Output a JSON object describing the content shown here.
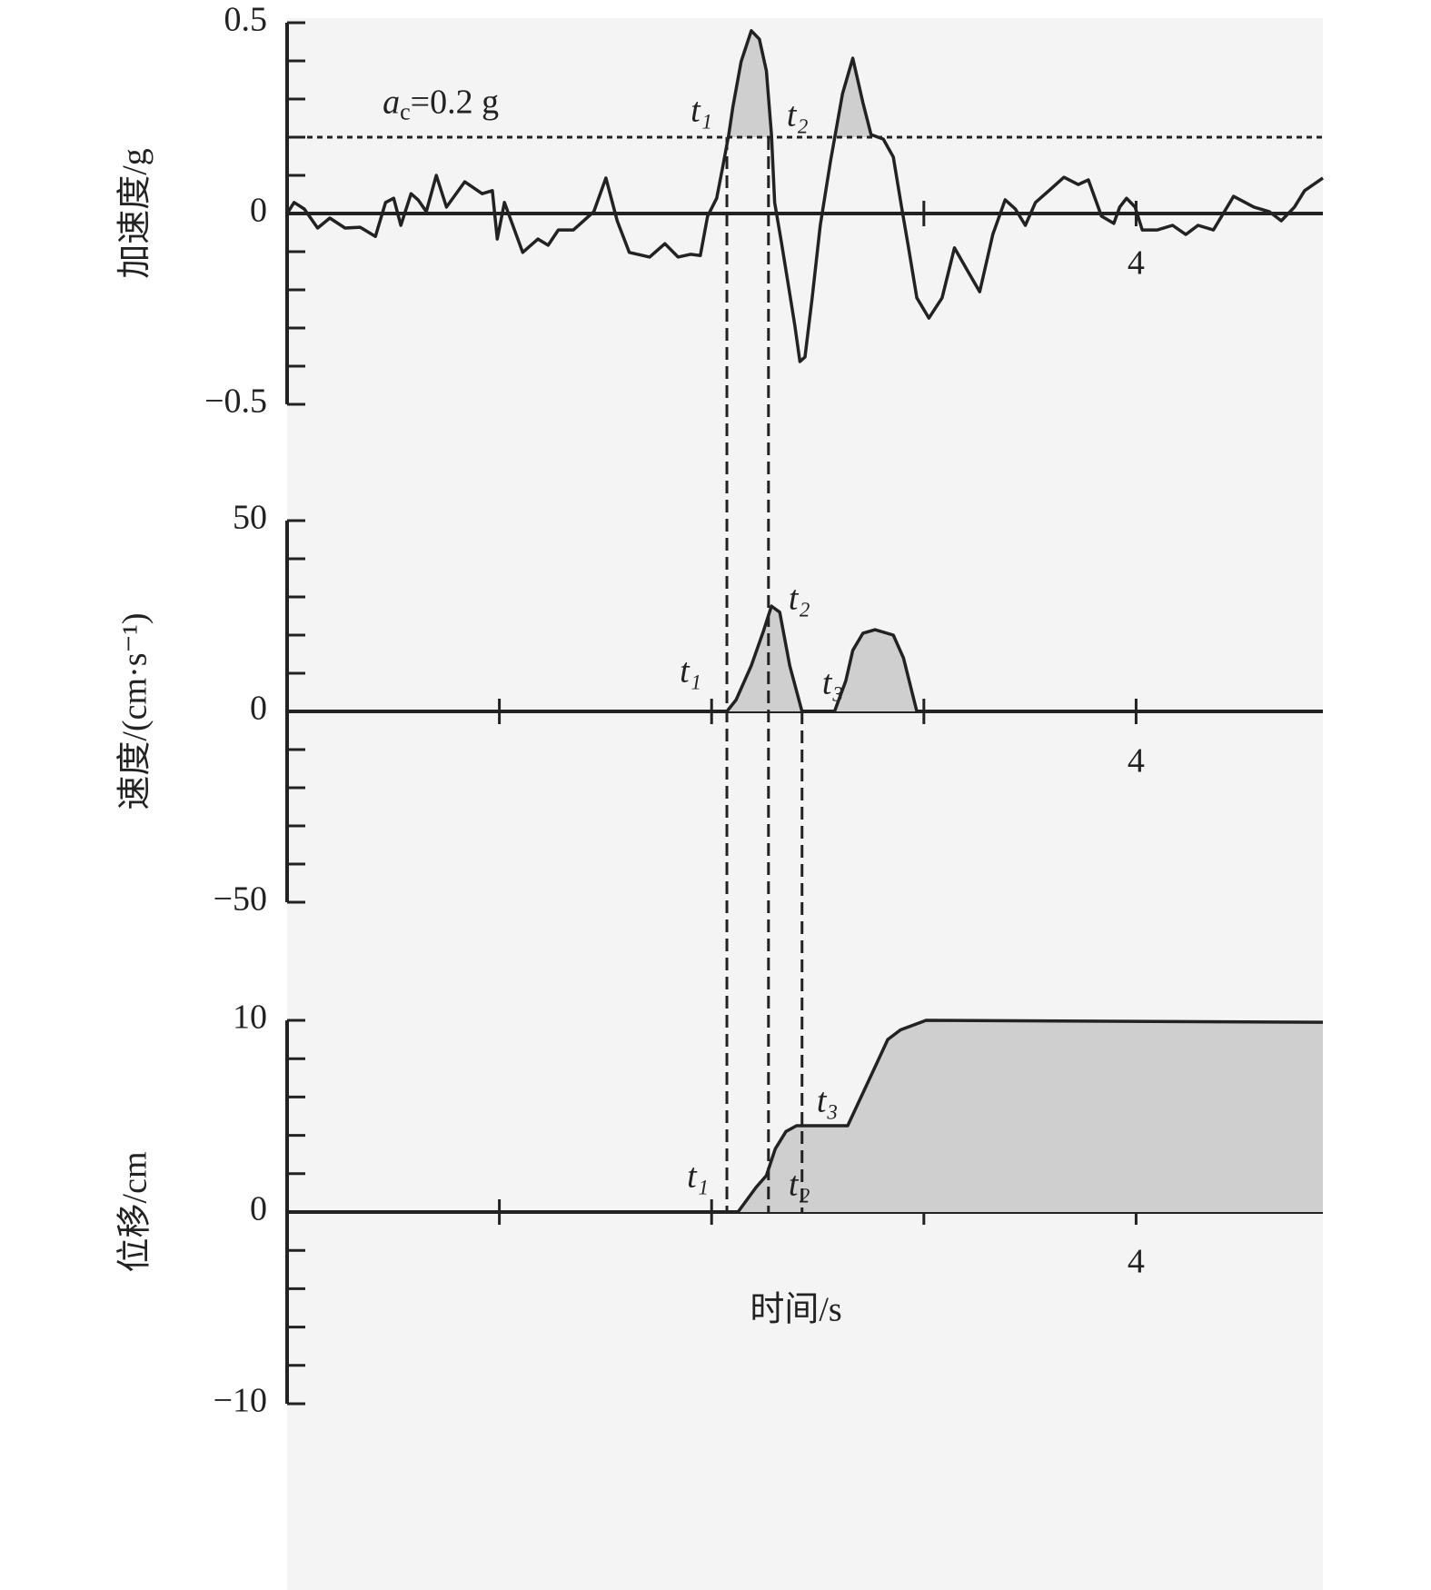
{
  "chart_data": [
    {
      "type": "line",
      "ylabel": "加速度/g",
      "xlim": [
        0,
        4.88
      ],
      "ylim": [
        -0.5,
        0.5
      ],
      "xticks": [
        {
          "value": 3,
          "label": null
        },
        4
      ],
      "yticks": [
        {
          "value": -0.5,
          "label": "−0.5"
        },
        {
          "value": -0.4,
          "label": null
        },
        {
          "value": -0.3,
          "label": null
        },
        {
          "value": -0.2,
          "label": null
        },
        {
          "value": -0.1,
          "label": null
        },
        0,
        {
          "value": 0.1,
          "label": null
        },
        {
          "value": 0.2,
          "label": null
        },
        {
          "value": 0.3,
          "label": null
        },
        {
          "value": 0.4,
          "label": null
        },
        0.5
      ],
      "threshold": 0.2,
      "threshold_label": {
        "var": "a",
        "sub": "c",
        "rest": "=0.2 g"
      },
      "events": [
        {
          "label": "t₁",
          "x": 2.072
        },
        {
          "label": "t₂",
          "x": 2.268
        }
      ],
      "x": [
        0,
        0.033,
        0.081,
        0.144,
        0.201,
        0.273,
        0.344,
        0.416,
        0.464,
        0.502,
        0.536,
        0.584,
        0.617,
        0.656,
        0.703,
        0.751,
        0.837,
        0.919,
        0.967,
        0.99,
        1.024,
        1.11,
        1.182,
        1.23,
        1.278,
        1.349,
        1.445,
        1.502,
        1.555,
        1.612,
        1.708,
        1.78,
        1.842,
        1.9,
        1.947,
        1.981,
        2.024,
        2.053,
        2.081,
        2.1,
        2.139,
        2.187,
        2.225,
        2.258,
        2.282,
        2.297,
        2.33,
        2.368,
        2.392,
        2.416,
        2.44,
        2.474,
        2.512,
        2.56,
        2.617,
        2.665,
        2.713,
        2.751,
        2.809,
        2.856,
        2.895,
        2.928,
        2.967,
        3.024,
        3.086,
        3.144,
        3.206,
        3.263,
        3.325,
        3.383,
        3.431,
        3.478,
        3.526,
        3.598,
        3.66,
        3.727,
        3.775,
        3.837,
        3.895,
        3.923,
        3.955,
        3.995,
        4.029,
        4.1,
        4.172,
        4.234,
        4.292,
        4.364,
        4.459,
        4.555,
        4.627,
        4.684,
        4.746,
        4.794,
        4.88
      ],
      "values": [
        0,
        0.029,
        0.012,
        -0.038,
        -0.012,
        -0.038,
        -0.036,
        -0.06,
        0.029,
        0.04,
        -0.031,
        0.052,
        0.036,
        0.005,
        0.1,
        0.017,
        0.083,
        0.052,
        0.06,
        -0.067,
        0.029,
        -0.102,
        -0.067,
        -0.083,
        -0.043,
        -0.043,
        0.005,
        0.093,
        -0.019,
        -0.102,
        -0.114,
        -0.079,
        -0.114,
        -0.107,
        -0.11,
        -0.007,
        0.04,
        0.124,
        0.207,
        0.279,
        0.398,
        0.479,
        0.457,
        0.374,
        0.207,
        0.029,
        -0.079,
        -0.21,
        -0.293,
        -0.388,
        -0.376,
        -0.221,
        -0.031,
        0.136,
        0.314,
        0.407,
        0.29,
        0.207,
        0.195,
        0.148,
        0.017,
        -0.09,
        -0.221,
        -0.274,
        -0.221,
        -0.09,
        -0.15,
        -0.205,
        -0.055,
        0.036,
        0.012,
        -0.031,
        0.029,
        0.064,
        0.095,
        0.076,
        0.088,
        -0.007,
        -0.026,
        0.017,
        0.04,
        0.017,
        -0.043,
        -0.043,
        -0.031,
        -0.055,
        -0.031,
        -0.043,
        0.045,
        0.017,
        0.005,
        -0.019,
        0.017,
        0.06,
        0.093
      ]
    },
    {
      "type": "area",
      "ylabel": "速度/(cm·s⁻¹)",
      "xlim": [
        0,
        4.88
      ],
      "ylim": [
        -50,
        50
      ],
      "xticks": [
        {
          "value": 1,
          "label": null
        },
        {
          "value": 2,
          "label": null
        },
        {
          "value": 3,
          "label": null
        },
        4
      ],
      "yticks": [
        {
          "value": -50,
          "label": "−50"
        },
        {
          "value": -40,
          "label": null
        },
        {
          "value": -30,
          "label": null
        },
        {
          "value": -20,
          "label": null
        },
        {
          "value": -10,
          "label": null
        },
        0,
        {
          "value": 10,
          "label": null
        },
        {
          "value": 20,
          "label": null
        },
        {
          "value": 30,
          "label": null
        },
        {
          "value": 40,
          "label": null
        },
        50
      ],
      "events": [
        {
          "label": "t₁",
          "x": 2.072
        },
        {
          "label": "t₂",
          "x": 2.268
        },
        {
          "label": "t₃",
          "x": 2.426
        }
      ],
      "x": [
        0,
        2.072,
        2.115,
        2.187,
        2.244,
        2.282,
        2.321,
        2.368,
        2.426,
        2.579,
        2.632,
        2.665,
        2.713,
        2.77,
        2.856,
        2.904,
        2.967,
        4.88
      ],
      "values": [
        0,
        0,
        3,
        12,
        21,
        27.6,
        26,
        12,
        0,
        0,
        8,
        16,
        20.5,
        21.4,
        20,
        14,
        0,
        0
      ]
    },
    {
      "type": "area",
      "ylabel": "位移/cm",
      "xlabel": "时间/s",
      "xlim": [
        0,
        4.88
      ],
      "ylim": [
        -10,
        10
      ],
      "xticks": [
        {
          "value": 1,
          "label": null
        },
        {
          "value": 2,
          "label": null
        },
        {
          "value": 3,
          "label": null
        },
        4
      ],
      "yticks": [
        {
          "value": -10,
          "label": "−10"
        },
        {
          "value": -8,
          "label": null
        },
        {
          "value": -6,
          "label": null
        },
        {
          "value": -4,
          "label": null
        },
        {
          "value": -2,
          "label": null
        },
        0,
        {
          "value": 2,
          "label": null
        },
        {
          "value": 4,
          "label": null
        },
        {
          "value": 6,
          "label": null
        },
        {
          "value": 8,
          "label": null
        },
        10
      ],
      "events": [
        {
          "label": "t₁",
          "x": 2.072
        },
        {
          "label": "t₂",
          "x": 2.268
        },
        {
          "label": "t₃",
          "x": 2.426
        }
      ],
      "x": [
        0,
        2.124,
        2.21,
        2.258,
        2.3,
        2.35,
        2.4,
        2.641,
        2.78,
        2.83,
        2.89,
        3.01,
        4.88
      ],
      "values": [
        0,
        0,
        1.3,
        1.9,
        3.3,
        4.2,
        4.5,
        4.5,
        7.8,
        9.0,
        9.5,
        10.0,
        9.9
      ]
    }
  ]
}
